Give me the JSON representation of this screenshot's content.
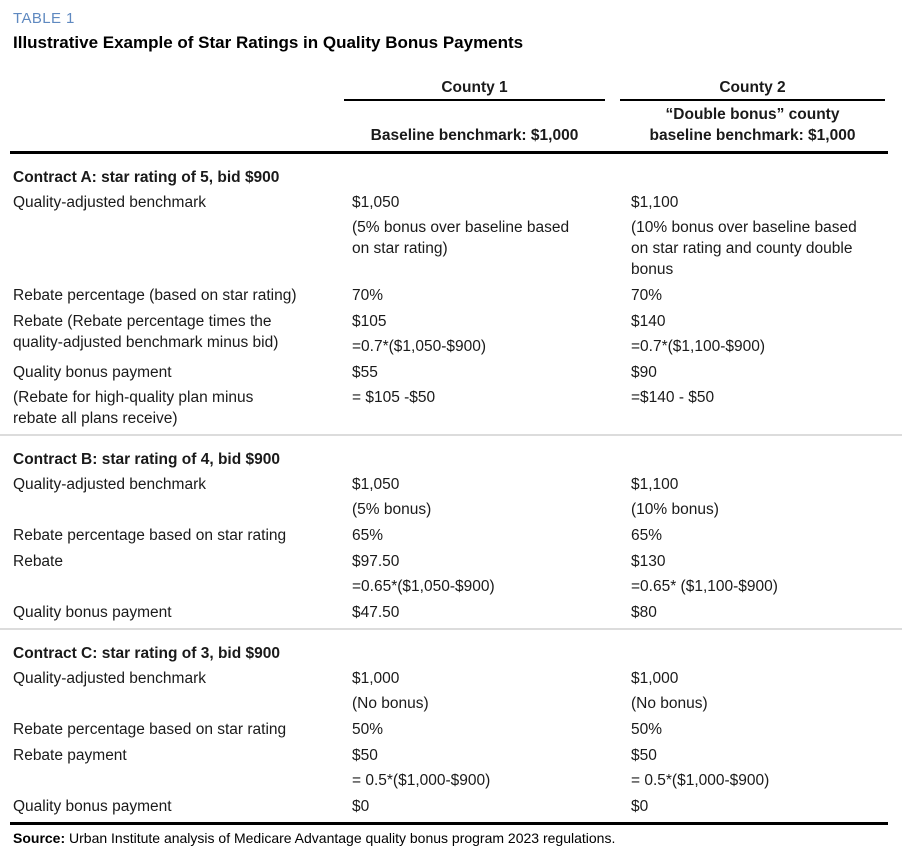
{
  "table_label": "TABLE 1",
  "title": "Illustrative Example of Star Ratings in Quality Bonus Payments",
  "header": {
    "county1": {
      "name": "County 1",
      "subtitle": "Baseline benchmark: $1,000"
    },
    "county2": {
      "name": "County 2",
      "subtitle_line1": "“Double bonus” county",
      "subtitle_line2": "baseline benchmark: $1,000"
    }
  },
  "sections": [
    {
      "id": "contract-a",
      "heading": "Contract A: star rating of 5, bid $900",
      "rows": [
        {
          "label": [
            [
              "Quality-adjusted benchmark"
            ]
          ],
          "county1": [
            [
              "$1,050"
            ],
            [
              "(5% bonus over baseline based",
              "on star rating)"
            ]
          ],
          "county2": [
            [
              "$1,100"
            ],
            [
              "(10% bonus over baseline based",
              "on star rating and county double",
              "bonus"
            ]
          ]
        },
        {
          "label": [
            [
              "Rebate percentage (based on star rating)"
            ]
          ],
          "county1": [
            [
              "70%"
            ]
          ],
          "county2": [
            [
              "70%"
            ]
          ]
        },
        {
          "label": [
            [
              "Rebate (Rebate percentage times the",
              "quality-adjusted benchmark minus bid)"
            ]
          ],
          "county1": [
            [
              "$105"
            ],
            [
              "=0.7*($1,050-$900)"
            ]
          ],
          "county2": [
            [
              "$140"
            ],
            [
              "=0.7*($1,100-$900)"
            ]
          ]
        },
        {
          "label": [
            [
              "Quality bonus payment"
            ],
            [
              "(Rebate for high-quality plan minus",
              "rebate all plans receive)"
            ]
          ],
          "county1": [
            [
              "$55"
            ],
            [
              "= $105 -$50"
            ]
          ],
          "county2": [
            [
              "$90"
            ],
            [
              "=$140 - $50"
            ]
          ]
        }
      ]
    },
    {
      "id": "contract-b",
      "heading": "Contract B: star rating of 4, bid $900",
      "rows": [
        {
          "label": [
            [
              "Quality-adjusted benchmark"
            ]
          ],
          "county1": [
            [
              "$1,050"
            ],
            [
              "(5% bonus)"
            ]
          ],
          "county2": [
            [
              "$1,100"
            ],
            [
              "(10% bonus)"
            ]
          ]
        },
        {
          "label": [
            [
              "Rebate percentage based on star rating"
            ]
          ],
          "county1": [
            [
              "65%"
            ]
          ],
          "county2": [
            [
              "65%"
            ]
          ]
        },
        {
          "label": [
            [
              "Rebate"
            ]
          ],
          "county1": [
            [
              "$97.50"
            ],
            [
              "=0.65*($1,050-$900)"
            ]
          ],
          "county2": [
            [
              "$130"
            ],
            [
              "=0.65* ($1,100-$900)"
            ]
          ]
        },
        {
          "label": [
            [
              "Quality bonus payment"
            ]
          ],
          "county1": [
            [
              "$47.50"
            ]
          ],
          "county2": [
            [
              "$80"
            ]
          ]
        }
      ]
    },
    {
      "id": "contract-c",
      "heading": "Contract C: star rating of 3, bid $900",
      "rows": [
        {
          "label": [
            [
              "Quality-adjusted benchmark"
            ]
          ],
          "county1": [
            [
              "$1,000"
            ],
            [
              "(No bonus)"
            ]
          ],
          "county2": [
            [
              "$1,000"
            ],
            [
              "(No bonus)"
            ]
          ]
        },
        {
          "label": [
            [
              "Rebate percentage based on star rating"
            ]
          ],
          "county1": [
            [
              "50%"
            ]
          ],
          "county2": [
            [
              "50%"
            ]
          ]
        },
        {
          "label": [
            [
              "Rebate payment"
            ]
          ],
          "county1": [
            [
              "$50"
            ],
            [
              "= 0.5*($1,000-$900)"
            ]
          ],
          "county2": [
            [
              "$50"
            ],
            [
              "= 0.5*($1,000-$900)"
            ]
          ]
        },
        {
          "label": [
            [
              "Quality bonus payment"
            ]
          ],
          "county1": [
            [
              "$0"
            ]
          ],
          "county2": [
            [
              "$0"
            ]
          ]
        }
      ]
    }
  ],
  "source": {
    "label": "Source:",
    "text": " Urban Institute analysis of Medicare Advantage quality bonus program 2023 regulations."
  },
  "colors": {
    "accent_blue": "#5f89c0",
    "rule_black": "#000000",
    "divider_gray": "#dcdcdc"
  }
}
